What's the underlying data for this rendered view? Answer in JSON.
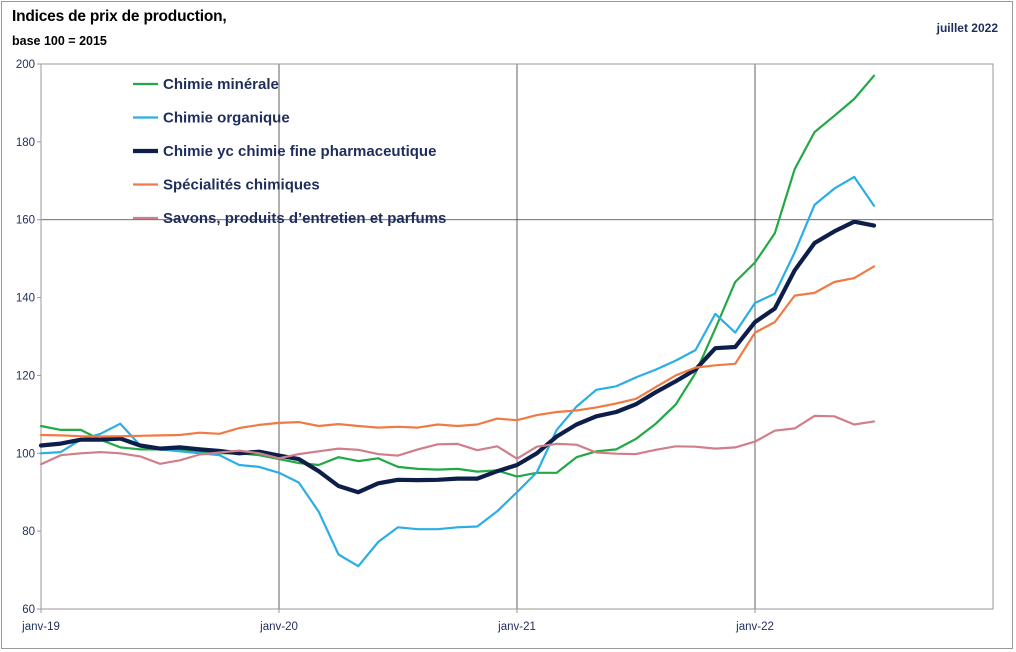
{
  "header": {
    "title": "Indices de prix de production,",
    "subtitle": "base 100 = 2015",
    "date": "juillet 2022"
  },
  "colors": {
    "axis": "#9a9a9a",
    "grid": "#3a3a3a",
    "text": "#1f2d5a"
  },
  "chart_data": {
    "type": "line",
    "x": [
      "2019-01",
      "2019-02",
      "2019-03",
      "2019-04",
      "2019-05",
      "2019-06",
      "2019-07",
      "2019-08",
      "2019-09",
      "2019-10",
      "2019-11",
      "2019-12",
      "2020-01",
      "2020-02",
      "2020-03",
      "2020-04",
      "2020-05",
      "2020-06",
      "2020-07",
      "2020-08",
      "2020-09",
      "2020-10",
      "2020-11",
      "2020-12",
      "2021-01",
      "2021-02",
      "2021-03",
      "2021-04",
      "2021-05",
      "2021-06",
      "2021-07",
      "2021-08",
      "2021-09",
      "2021-10",
      "2021-11",
      "2021-12",
      "2022-01",
      "2022-02",
      "2022-03",
      "2022-04",
      "2022-05",
      "2022-06",
      "2022-07"
    ],
    "xticks": [
      {
        "x": "2019-01",
        "label": "janv-19"
      },
      {
        "x": "2020-01",
        "label": "janv-20"
      },
      {
        "x": "2021-01",
        "label": "janv-21"
      },
      {
        "x": "2022-01",
        "label": "janv-22"
      }
    ],
    "x_range": [
      "2019-01",
      "2023-01"
    ],
    "ylim": [
      60,
      200
    ],
    "yticks": [
      60,
      80,
      100,
      120,
      140,
      160,
      180,
      200
    ],
    "grid": "vertical lines at janv-20, janv-21, janv-22; horizontal line at 160",
    "legend_position": "top-left",
    "series": [
      {
        "name": "Chimie minérale",
        "color": "#22a845",
        "width": 2.2,
        "values": [
          107,
          106,
          106,
          103.5,
          101.5,
          101,
          101,
          101,
          100.5,
          100,
          100,
          99.5,
          98.5,
          97.5,
          97,
          99,
          98,
          98.7,
          96.5,
          96,
          95.8,
          96,
          95.3,
          95.6,
          94,
          95,
          95,
          99,
          100.5,
          101,
          103.7,
          107.6,
          112.5,
          120.6,
          132,
          144,
          149,
          156.5,
          173,
          182.5,
          186.7,
          191,
          197
        ]
      },
      {
        "name": "Chimie organique",
        "color": "#2aaee4",
        "width": 2.2,
        "values": [
          100,
          100.3,
          103.5,
          105,
          107.6,
          102,
          101,
          100.5,
          100,
          99.5,
          97,
          96.5,
          95,
          92.5,
          85,
          74,
          71,
          77.2,
          81,
          80.5,
          80.5,
          81,
          81.2,
          85.1,
          90,
          95.1,
          106,
          112,
          116.3,
          117.2,
          119.5,
          121.5,
          123.8,
          126.5,
          135.8,
          131,
          138.6,
          141,
          151.6,
          163.8,
          168,
          171,
          163.6
        ]
      },
      {
        "name": "Chimie yc chimie fine pharmaceutique",
        "color": "#0d1e4a",
        "width": 4.2,
        "values": [
          102,
          102.5,
          103.5,
          103.5,
          103.8,
          102,
          101.2,
          101.5,
          101,
          100.6,
          100,
          100.4,
          99.4,
          98.5,
          95.4,
          91.6,
          90,
          92.3,
          93.2,
          93.1,
          93.2,
          93.5,
          93.5,
          95.4,
          97,
          100,
          104.3,
          107.4,
          109.5,
          110.6,
          112.6,
          115.7,
          118.5,
          121.5,
          127,
          127.3,
          133.7,
          137.2,
          147,
          154,
          157,
          159.5,
          158.5
        ]
      },
      {
        "name": "Spécialités chimiques",
        "color": "#f07a45",
        "width": 2.2,
        "values": [
          104.7,
          104.6,
          104.4,
          104.3,
          104.4,
          104.5,
          104.6,
          104.7,
          105.3,
          105,
          106.5,
          107.3,
          107.8,
          108,
          107,
          107.5,
          107,
          106.6,
          106.8,
          106.6,
          107.4,
          107,
          107.4,
          108.9,
          108.5,
          109.8,
          110.6,
          111,
          111.8,
          112.8,
          114,
          117,
          120,
          122,
          122.6,
          123,
          131,
          133.7,
          140.5,
          141.2,
          144,
          145,
          148
        ]
      },
      {
        "name": "Savons, produits d’entretien et parfums",
        "color": "#d07f8a",
        "width": 2.2,
        "values": [
          97.2,
          99.5,
          100,
          100.3,
          100,
          99.2,
          97.3,
          98.2,
          99.7,
          100.2,
          100.7,
          100,
          98.7,
          99.8,
          100.5,
          101.2,
          100.9,
          99.8,
          99.4,
          101,
          102.3,
          102.4,
          100.8,
          101.8,
          98.6,
          101.7,
          102.4,
          102.2,
          100.2,
          99.9,
          99.8,
          100.9,
          101.8,
          101.7,
          101.2,
          101.5,
          103,
          105.8,
          106.4,
          109.6,
          109.5,
          107.4,
          108.2
        ]
      }
    ]
  }
}
